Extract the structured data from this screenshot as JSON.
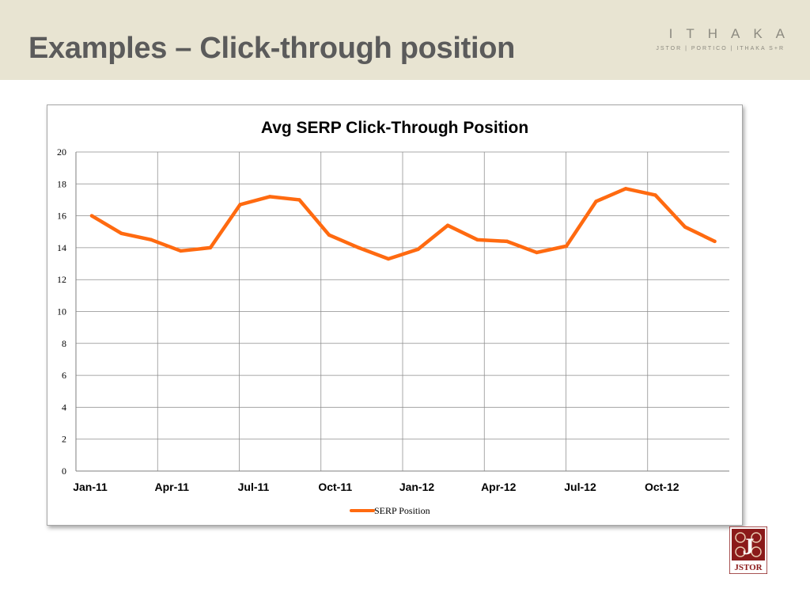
{
  "slide": {
    "title": "Examples – Click-through position"
  },
  "brand": {
    "name": "ITHAKA",
    "tagline": "JSTOR | PORTICO | ITHAKA S+R",
    "logo_text": "JSTOR",
    "logo_color": "#8b1a1a"
  },
  "colors": {
    "header_bg": "#e8e4d2",
    "title_text": "#5b5b5b",
    "series_line": "#ff6a10",
    "gridline": "#8c8c8c"
  },
  "chart_data": {
    "type": "line",
    "title": "Avg SERP Click-Through Position",
    "xlabel": "",
    "ylabel": "",
    "ylim": [
      0,
      20
    ],
    "y_ticks": [
      0,
      2,
      4,
      6,
      8,
      10,
      12,
      14,
      16,
      18,
      20
    ],
    "x_tick_labels": [
      "Jan-11",
      "Apr-11",
      "Jul-11",
      "Oct-11",
      "Jan-12",
      "Apr-12",
      "Jul-12",
      "Oct-12"
    ],
    "grid": true,
    "legend_position": "bottom",
    "categories": [
      "Jan-11",
      "Feb-11",
      "Mar-11",
      "Apr-11",
      "May-11",
      "Jun-11",
      "Jul-11",
      "Aug-11",
      "Sep-11",
      "Oct-11",
      "Nov-11",
      "Dec-11",
      "Jan-12",
      "Feb-12",
      "Mar-12",
      "Apr-12",
      "May-12",
      "Jun-12",
      "Jul-12",
      "Aug-12",
      "Sep-12",
      "Oct-12"
    ],
    "series": [
      {
        "name": "SERP Position",
        "color": "#ff6a10",
        "values": [
          16.0,
          14.9,
          14.5,
          13.8,
          14.0,
          16.7,
          17.2,
          17.0,
          14.8,
          14.0,
          13.3,
          13.9,
          15.4,
          14.5,
          14.4,
          13.7,
          14.1,
          16.9,
          17.7,
          17.3,
          15.3,
          14.4
        ]
      }
    ]
  }
}
